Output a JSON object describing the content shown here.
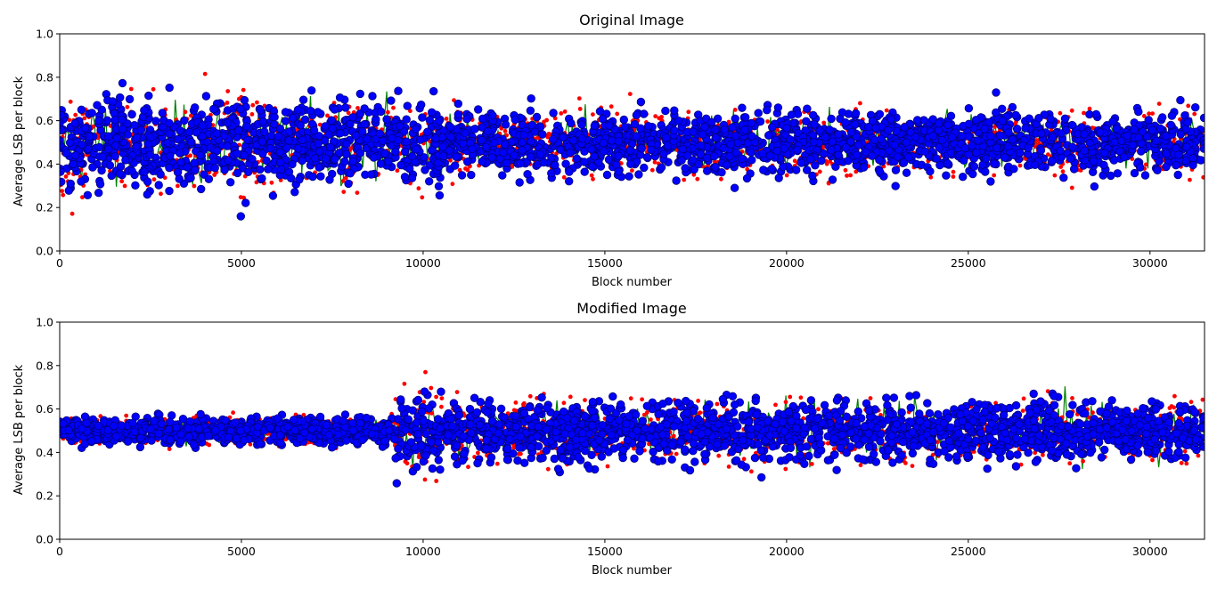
{
  "chart_data": [
    {
      "type": "scatter",
      "title": "Original Image",
      "xlabel": "Block number",
      "ylabel": "Average LSB per block",
      "xlim": [
        0,
        31500
      ],
      "ylim": [
        0,
        1.0
      ],
      "xticks": [
        "0",
        "5000",
        "10000",
        "15000",
        "20000",
        "25000",
        "30000"
      ],
      "yticks": [
        "0.0",
        "0.2",
        "0.4",
        "0.6",
        "0.8",
        "1.0"
      ],
      "grid": false,
      "legend": "none",
      "series_colors": {
        "line": "#008000",
        "small_points": "#ff0000",
        "large_points": "#0000ff",
        "large_points_edge": "#00007a"
      },
      "regions": [
        {
          "x": [
            0,
            2000
          ],
          "mean": 0.5,
          "spread": 0.48
        },
        {
          "x": [
            2000,
            4000
          ],
          "mean": 0.48,
          "spread": 0.42
        },
        {
          "x": [
            4000,
            6000
          ],
          "mean": 0.5,
          "spread": 0.48
        },
        {
          "x": [
            6000,
            10500
          ],
          "mean": 0.5,
          "spread": 0.4
        },
        {
          "x": [
            10500,
            31500
          ],
          "mean": 0.5,
          "spread": 0.3
        }
      ]
    },
    {
      "type": "scatter",
      "title": "Modified Image",
      "xlabel": "Block number",
      "ylabel": "Average LSB per block",
      "xlim": [
        0,
        31500
      ],
      "ylim": [
        0,
        1.0
      ],
      "xticks": [
        "0",
        "5000",
        "10000",
        "15000",
        "20000",
        "25000",
        "30000"
      ],
      "yticks": [
        "0.0",
        "0.2",
        "0.4",
        "0.6",
        "0.8",
        "1.0"
      ],
      "grid": false,
      "legend": "none",
      "series_colors": {
        "line": "#008000",
        "small_points": "#ff0000",
        "large_points": "#0000ff",
        "large_points_edge": "#00007a"
      },
      "regions": [
        {
          "x": [
            0,
            9200
          ],
          "mean": 0.5,
          "spread": 0.13
        },
        {
          "x": [
            9200,
            10500
          ],
          "mean": 0.5,
          "spread": 0.45
        },
        {
          "x": [
            10500,
            31500
          ],
          "mean": 0.5,
          "spread": 0.3
        }
      ]
    }
  ]
}
